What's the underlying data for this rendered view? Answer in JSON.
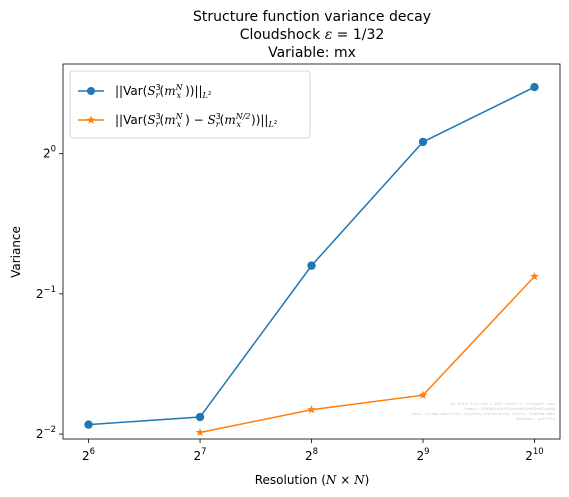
{
  "chart_data": {
    "type": "line",
    "title_lines": [
      "Structure function variance decay",
      "Cloudshock ε = 1/32",
      "Variable: mx"
    ],
    "xlabel": "Resolution (N × N)",
    "ylabel": "Variance",
    "x_scale": "log2",
    "y_scale": "log2",
    "x_ticks": [
      {
        "value": 64,
        "base": "2",
        "exp": "6"
      },
      {
        "value": 128,
        "base": "2",
        "exp": "7"
      },
      {
        "value": 256,
        "base": "2",
        "exp": "8"
      },
      {
        "value": 512,
        "base": "2",
        "exp": "9"
      },
      {
        "value": 1024,
        "base": "2",
        "exp": "10"
      }
    ],
    "y_ticks": [
      {
        "value": 0.25,
        "base": "2",
        "exp": "−2"
      },
      {
        "value": 0.5,
        "base": "2",
        "exp": "−1"
      },
      {
        "value": 1,
        "base": "2",
        "exp": "0"
      }
    ],
    "xlim": [
      54.6,
      1200
    ],
    "ylim": [
      0.244,
      1.558
    ],
    "grid": false,
    "legend_position": "upper-left",
    "series": [
      {
        "name": "||Var(S_r^3(m_x^N))||_{L^2}",
        "color": "#1f77b4",
        "marker": "circle",
        "x": [
          64,
          128,
          256,
          512,
          1024
        ],
        "y": [
          0.262,
          0.272,
          0.575,
          1.06,
          1.39
        ]
      },
      {
        "name": "||Var(S_r^3(m_x^N) − S_r^3(m_x^{N/2}))||_{L^2}",
        "color": "#ff7f0e",
        "marker": "star",
        "x": [
          128,
          256,
          512,
          1024
        ],
        "y": [
          0.252,
          0.282,
          0.303,
          0.545
        ]
      }
    ]
  },
  "watermark_lines": [
    "Rr Elbil Flus Lat 2.2022 sisifl 2.lirhppoct.com)",
    "Commit: 6983b2541b747ba4e5b03cb43bd07ca4d8",
    "Repo: github.com/kjetil lye/mlmc-stationarity (kjetil.lye@sam.math",
    "Hostname: puffrfin"
  ]
}
